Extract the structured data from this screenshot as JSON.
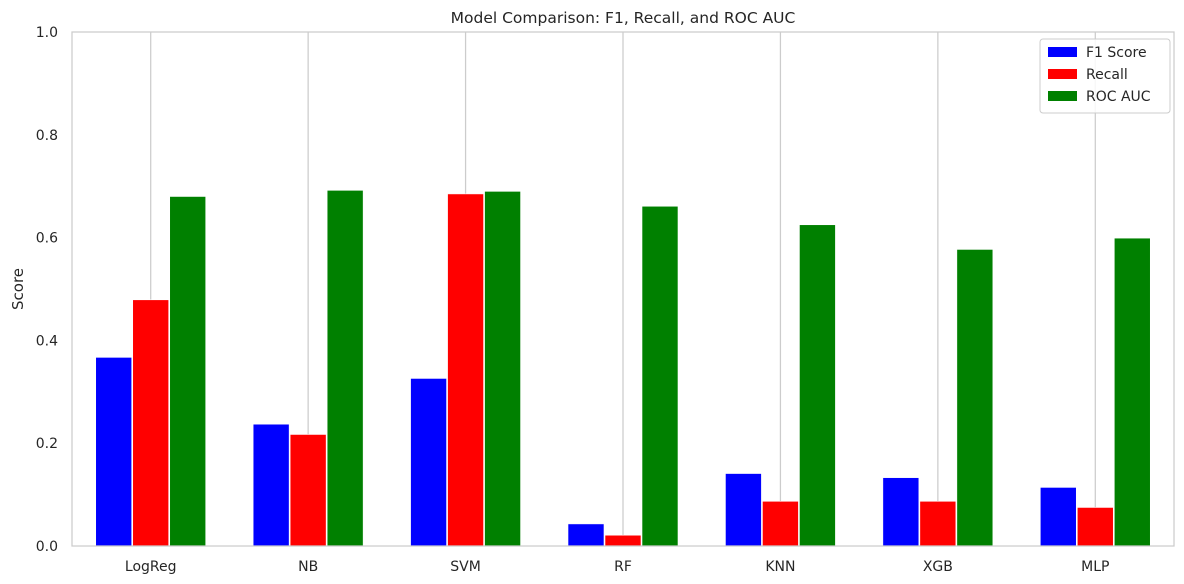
{
  "chart_data": {
    "type": "bar",
    "title": "Model Comparison: F1, Recall, and ROC AUC",
    "xlabel": "",
    "ylabel": "Score",
    "ylim": [
      0,
      1.0
    ],
    "yticks": [
      "0.0",
      "0.2",
      "0.4",
      "0.6",
      "0.8",
      "1.0"
    ],
    "categories": [
      "LogReg",
      "NB",
      "SVM",
      "RF",
      "KNN",
      "XGB",
      "MLP"
    ],
    "series": [
      {
        "name": "F1 Score",
        "color": "#0000ff",
        "values": [
          0.367,
          0.237,
          0.326,
          0.043,
          0.141,
          0.133,
          0.114
        ]
      },
      {
        "name": "Recall",
        "color": "#ff0000",
        "values": [
          0.479,
          0.217,
          0.685,
          0.021,
          0.087,
          0.087,
          0.075
        ]
      },
      {
        "name": "ROC AUC",
        "color": "#008000",
        "values": [
          0.68,
          0.692,
          0.69,
          0.661,
          0.625,
          0.577,
          0.599
        ]
      }
    ],
    "grid": {
      "x": true,
      "y": false
    },
    "legend_position": "top-right"
  }
}
